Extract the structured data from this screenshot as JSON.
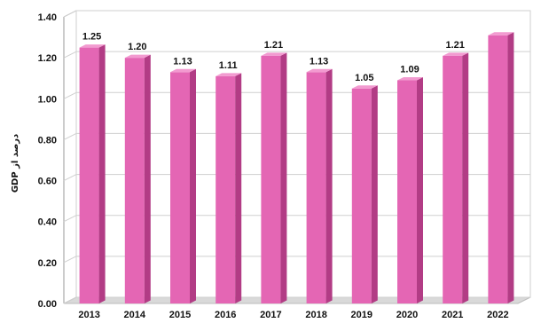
{
  "chart_data": {
    "type": "bar",
    "title": "",
    "xlabel": "",
    "ylabel": "GDP درصد از",
    "categories": [
      "2013",
      "2014",
      "2015",
      "2016",
      "2017",
      "2018",
      "2019",
      "2020",
      "2021",
      "2022"
    ],
    "values": [
      1.25,
      1.2,
      1.13,
      1.11,
      1.21,
      1.13,
      1.05,
      1.09,
      1.21,
      1.31
    ],
    "data_labels": [
      "1.25",
      "1.20",
      "1.13",
      "1.11",
      "1.21",
      "1.13",
      "1.05",
      "1.09",
      "1.21",
      ""
    ],
    "ylim": [
      0,
      1.4
    ],
    "yticks": [
      "0.00",
      "0.20",
      "0.40",
      "0.60",
      "0.80",
      "1.00",
      "1.20",
      "1.40"
    ],
    "grid": true,
    "legend": "none",
    "colors": {
      "bar_front": "#e466b4",
      "bar_side": "#b23c85",
      "bar_top": "#f29ad0",
      "grid": "#cfcfcf",
      "wall_back": "#ffffff",
      "floor": "#d9d9d9"
    }
  }
}
